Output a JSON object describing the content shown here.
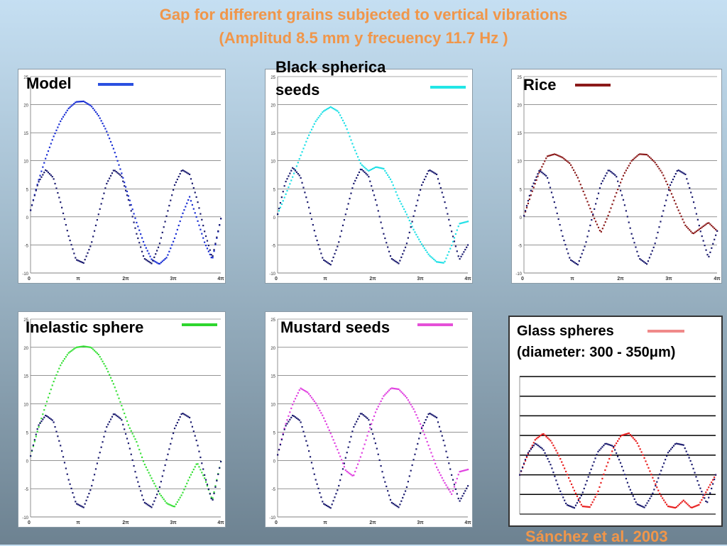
{
  "title": {
    "line1": "Gap for different grains subjected to vertical vibrations",
    "line2": "(Amplitud 8.5 mm  y frecuency 11.7 Hz )"
  },
  "credit": "Sánchez et al. 2003",
  "colors": {
    "reference_trace": "#1a1a6e",
    "title": "#f0964a"
  },
  "chart_data": [
    {
      "type": "scatter",
      "label": "Model",
      "legend_color": "#2b50e0",
      "ylim": [
        -10,
        25
      ],
      "xlim": [
        0,
        12.566
      ],
      "yticks": [
        "25",
        "20",
        "15",
        "10",
        "5",
        "0",
        "-5",
        "-10"
      ],
      "xticks": [
        "0",
        "π",
        "2π",
        "3π",
        "4π"
      ],
      "series": [
        {
          "name": "Model",
          "color": "#1a2fd4",
          "x": [
            0,
            0.5,
            1,
            1.5,
            2,
            2.5,
            3,
            3.5,
            4,
            4.5,
            5,
            5.5,
            6,
            6.5,
            7,
            7.5,
            8,
            8.5,
            9,
            9.5,
            10,
            10.5,
            11,
            11.5,
            12,
            12.566
          ],
          "y": [
            1.2,
            6.3,
            10.5,
            14.2,
            17.2,
            19.3,
            20.5,
            20.6,
            19.8,
            18.0,
            15.4,
            12.0,
            7.9,
            3.4,
            -1.0,
            -4.8,
            -7.6,
            -8.4,
            -7.2,
            -3.9,
            0.3,
            3.6,
            -0.4,
            -4.6,
            -7.6,
            -0.3
          ]
        },
        {
          "name": "",
          "color": "#1a1a6e",
          "x": [
            0,
            0.5,
            1,
            1.5,
            2,
            2.5,
            3,
            3.5,
            4,
            4.5,
            5,
            5.5,
            6,
            6.5,
            7,
            7.5,
            8,
            8.5,
            9,
            9.5,
            10,
            10.5,
            11,
            11.5,
            12,
            12.566
          ],
          "y": [
            1.2,
            6.1,
            8.4,
            7.0,
            2.4,
            -3.3,
            -7.6,
            -8.2,
            -4.9,
            0.6,
            5.8,
            8.4,
            7.3,
            2.7,
            -3.0,
            -7.4,
            -8.3,
            -5.0,
            0.4,
            5.6,
            8.4,
            7.6,
            3.1,
            -2.7,
            -7.3,
            -0.3
          ]
        }
      ]
    },
    {
      "type": "scatter",
      "label": "Black spherica seeds",
      "legend_color": "#22e6e6",
      "ylim": [
        -10,
        25
      ],
      "xlim": [
        0,
        12.566
      ],
      "yticks": [
        "25",
        "20",
        "15",
        "10",
        "5",
        "0",
        "-5",
        "-10"
      ],
      "xticks": [
        "0",
        "π",
        "2π",
        "3π",
        "4π"
      ],
      "series": [
        {
          "name": "Black spherica seeds",
          "color": "#1fe0e6",
          "x": [
            0,
            0.5,
            1,
            1.5,
            2,
            2.5,
            3,
            3.5,
            4,
            4.5,
            5,
            5.5,
            6,
            6.5,
            7,
            7.5,
            8,
            8.5,
            9,
            9.5,
            10,
            10.5,
            11,
            11.5,
            12,
            12.566
          ],
          "y": [
            0.5,
            3.8,
            7.2,
            10.8,
            14.2,
            17.0,
            18.8,
            19.6,
            18.8,
            16.2,
            12.6,
            9.4,
            8.2,
            8.9,
            8.6,
            6.5,
            3.2,
            0.6,
            -2.4,
            -4.8,
            -6.8,
            -8.0,
            -8.2,
            -5.0,
            -1.2,
            -0.8
          ]
        },
        {
          "name": "",
          "color": "#1a1a6e",
          "x": [
            0,
            0.5,
            1,
            1.5,
            2,
            2.5,
            3,
            3.5,
            4,
            4.5,
            5,
            5.5,
            6,
            6.5,
            7,
            7.5,
            8,
            8.5,
            9,
            9.5,
            10,
            10.5,
            11,
            11.5,
            12,
            12.566
          ],
          "y": [
            0.5,
            6.1,
            8.8,
            7.2,
            2.4,
            -3.3,
            -7.6,
            -8.5,
            -4.9,
            0.6,
            5.8,
            8.6,
            7.3,
            2.7,
            -3.0,
            -7.4,
            -8.3,
            -5.0,
            0.4,
            5.6,
            8.4,
            7.6,
            3.1,
            -2.7,
            -7.6,
            -5.0
          ]
        }
      ]
    },
    {
      "type": "scatter",
      "label": "Rice",
      "legend_color": "#8b1a1a",
      "ylim": [
        -10,
        25
      ],
      "xlim": [
        0,
        12.566
      ],
      "yticks": [
        "25",
        "20",
        "15",
        "10",
        "5",
        "0",
        "-5",
        "-10"
      ],
      "xticks": [
        "0",
        "π",
        "2π",
        "3π",
        "4π"
      ],
      "series": [
        {
          "name": "Rice",
          "color": "#8b1a1a",
          "x": [
            0,
            0.5,
            1,
            1.5,
            2,
            2.5,
            3,
            3.5,
            4,
            4.5,
            5,
            5.5,
            6,
            6.5,
            7,
            7.5,
            8,
            8.5,
            9,
            9.5,
            10,
            10.5,
            11,
            11.5,
            12,
            12.566
          ],
          "y": [
            0.2,
            4.3,
            8.0,
            10.8,
            11.2,
            10.6,
            9.5,
            7.0,
            3.6,
            0.2,
            -2.8,
            0.4,
            4.2,
            7.6,
            10.0,
            11.2,
            11.1,
            9.8,
            7.8,
            4.8,
            1.5,
            -1.5,
            -3.0,
            -2.0,
            -1.0,
            -2.5
          ]
        },
        {
          "name": "",
          "color": "#1a1a6e",
          "x": [
            0,
            0.5,
            1,
            1.5,
            2,
            2.5,
            3,
            3.5,
            4,
            4.5,
            5,
            5.5,
            6,
            6.5,
            7,
            7.5,
            8,
            8.5,
            9,
            9.5,
            10,
            10.5,
            11,
            11.5,
            12,
            12.566
          ],
          "y": [
            0.2,
            5.2,
            8.3,
            7.2,
            2.4,
            -3.3,
            -7.6,
            -8.5,
            -4.9,
            0.6,
            5.8,
            8.4,
            7.3,
            2.7,
            -3.0,
            -7.4,
            -8.4,
            -5.0,
            0.4,
            5.6,
            8.4,
            7.6,
            3.1,
            -2.7,
            -7.3,
            -2.5
          ]
        }
      ]
    },
    {
      "type": "scatter",
      "label": "Inelastic sphere",
      "legend_color": "#2ed62e",
      "ylim": [
        -10,
        25
      ],
      "xlim": [
        0,
        12.566
      ],
      "yticks": [
        "25",
        "20",
        "15",
        "10",
        "5",
        "0",
        "-5",
        "-10"
      ],
      "xticks": [
        "0",
        "π",
        "2π",
        "3π",
        "4π"
      ],
      "series": [
        {
          "name": "Inelastic sphere",
          "color": "#38e038",
          "x": [
            0,
            0.5,
            1,
            1.5,
            2,
            2.5,
            3,
            3.5,
            4,
            4.5,
            5,
            5.5,
            6,
            6.5,
            7,
            7.5,
            8,
            8.5,
            9,
            9.5,
            10,
            10.5,
            11,
            11.5,
            12,
            12.566
          ],
          "y": [
            0.8,
            5.6,
            9.8,
            13.8,
            17.0,
            19.0,
            20.0,
            20.2,
            20.0,
            18.7,
            16.4,
            13.4,
            9.8,
            6.0,
            3.3,
            -0.5,
            -3.2,
            -5.8,
            -7.6,
            -8.2,
            -6.0,
            -3.0,
            -0.4,
            -3.2,
            -7.0,
            -0.2
          ]
        },
        {
          "name": "",
          "color": "#1a1a6e",
          "x": [
            0,
            0.5,
            1,
            1.5,
            2,
            2.5,
            3,
            3.5,
            4,
            4.5,
            5,
            5.5,
            6,
            6.5,
            7,
            7.5,
            8,
            8.5,
            9,
            9.5,
            10,
            10.5,
            11,
            11.5,
            12,
            12.566
          ],
          "y": [
            0.8,
            6.1,
            8.0,
            7.0,
            2.4,
            -3.3,
            -7.6,
            -8.3,
            -4.9,
            0.6,
            5.8,
            8.3,
            7.3,
            2.7,
            -3.0,
            -7.4,
            -8.3,
            -5.0,
            0.4,
            5.6,
            8.4,
            7.6,
            3.1,
            -2.7,
            -7.3,
            -0.2
          ]
        }
      ]
    },
    {
      "type": "scatter",
      "label": "Mustard seeds",
      "legend_color": "#e550d8",
      "ylim": [
        -10,
        25
      ],
      "xlim": [
        0,
        12.566
      ],
      "yticks": [
        "25",
        "20",
        "15",
        "10",
        "5",
        "0",
        "-5",
        "-10"
      ],
      "xticks": [
        "0",
        "π",
        "2π",
        "3π",
        "4π"
      ],
      "series": [
        {
          "name": "Mustard seeds",
          "color": "#e040e0",
          "x": [
            0,
            0.5,
            1,
            1.5,
            2,
            2.5,
            3,
            3.5,
            4,
            4.5,
            5,
            5.5,
            6,
            6.5,
            7,
            7.5,
            8,
            8.5,
            9,
            9.5,
            10,
            10.5,
            11,
            11.5,
            12,
            12.566
          ],
          "y": [
            1.0,
            6.2,
            10.0,
            12.8,
            12.0,
            10.2,
            7.8,
            4.8,
            1.6,
            -1.8,
            -2.8,
            0.8,
            5.0,
            8.8,
            11.4,
            12.8,
            12.6,
            11.2,
            9.0,
            6.0,
            2.4,
            -1.2,
            -3.8,
            -6.0,
            -2.0,
            -1.6
          ]
        },
        {
          "name": "",
          "color": "#1a1a6e",
          "x": [
            0,
            0.5,
            1,
            1.5,
            2,
            2.5,
            3,
            3.5,
            4,
            4.5,
            5,
            5.5,
            6,
            6.5,
            7,
            7.5,
            8,
            8.5,
            9,
            9.5,
            10,
            10.5,
            11,
            11.5,
            12,
            12.566
          ],
          "y": [
            1.0,
            6.0,
            8.0,
            7.0,
            2.4,
            -3.3,
            -7.6,
            -8.4,
            -4.9,
            0.6,
            5.8,
            8.4,
            7.3,
            2.7,
            -3.0,
            -7.4,
            -8.3,
            -5.0,
            0.4,
            5.6,
            8.4,
            7.6,
            3.1,
            -2.7,
            -7.3,
            -4.5
          ]
        }
      ]
    },
    {
      "type": "scatter",
      "label": "Glass spheres",
      "label_line2": "(diameter: 300 - 350μm)",
      "legend_color": "#f08a8a",
      "ylim": [
        -10,
        25
      ],
      "xlim": [
        0,
        12.566
      ],
      "yticks": [
        "",
        "",
        "",
        "",
        "",
        "",
        "",
        ""
      ],
      "xticks": [
        "",
        "",
        "",
        "",
        ""
      ],
      "series": [
        {
          "name": "Glass spheres",
          "color": "#e81c1c",
          "x": [
            0,
            0.5,
            1,
            1.5,
            2,
            2.5,
            3,
            3.5,
            4,
            4.5,
            5,
            5.5,
            6,
            6.5,
            7,
            7.5,
            8,
            8.5,
            9,
            9.5,
            10,
            10.5,
            11,
            11.5,
            12,
            12.566
          ],
          "y": [
            0,
            5.0,
            9.0,
            10.5,
            8.6,
            5.0,
            0.5,
            -4.0,
            -8.0,
            -8.2,
            -4.5,
            1.5,
            6.8,
            10.0,
            10.6,
            8.4,
            4.2,
            -0.5,
            -5.0,
            -8.0,
            -8.4,
            -6.5,
            -8.4,
            -7.6,
            -4.0,
            0
          ]
        },
        {
          "name": "",
          "color": "#1a1a6e",
          "x": [
            0,
            0.5,
            1,
            1.5,
            2,
            2.5,
            3,
            3.5,
            4,
            4.5,
            5,
            5.5,
            6,
            6.5,
            7,
            7.5,
            8,
            8.5,
            9,
            9.5,
            10,
            10.5,
            11,
            11.5,
            12,
            12.566
          ],
          "y": [
            0,
            5.4,
            8.0,
            6.5,
            2.4,
            -3.3,
            -7.6,
            -8.4,
            -4.9,
            0.6,
            5.8,
            8.0,
            7.3,
            2.7,
            -3.0,
            -7.4,
            -8.3,
            -5.0,
            0.4,
            5.6,
            8.0,
            7.6,
            3.1,
            -2.7,
            -7.3,
            0
          ]
        }
      ]
    }
  ]
}
